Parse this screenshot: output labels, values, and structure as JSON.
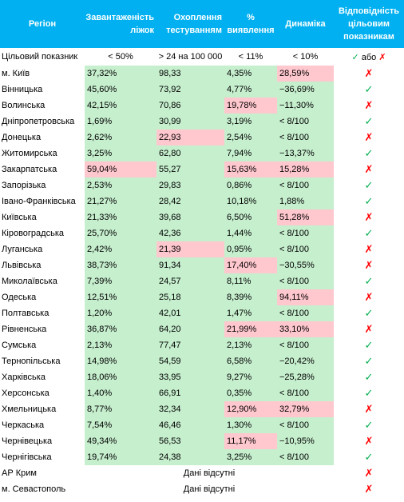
{
  "colors": {
    "header_bg": "#00b0f0",
    "header_text": "#ffffff",
    "good_fill": "#c6efce",
    "bad_fill": "#ffc7ce",
    "check_color": "#00b050",
    "cross_color": "#ff0000"
  },
  "headers": {
    "region": "Регіон",
    "beds": "Завантаженість ліжок",
    "testing": "Охоплення тестуванням",
    "detection": "% виявлення",
    "dynamics": "Динаміка",
    "compliance": "Відповідність цільовим показникам"
  },
  "target_row": {
    "label": "Цільовий показник",
    "beds": "< 50%",
    "testing": "> 24 на 100 000",
    "detection": "< 11%",
    "dynamics": "< 10%",
    "check_mark": "✓",
    "or_word": "або",
    "cross_mark": "✗"
  },
  "marks": {
    "yes": "✓",
    "no": "✗"
  },
  "rows": [
    {
      "region": "м. Київ",
      "beds": "37,32%",
      "testing": "98,33",
      "detection": "4,35%",
      "dynamics": "28,59%",
      "ok": false,
      "flags": [
        "g",
        "g",
        "g",
        "r"
      ]
    },
    {
      "region": "Вінницька",
      "beds": "45,60%",
      "testing": "73,92",
      "detection": "4,77%",
      "dynamics": "−36,69%",
      "ok": true,
      "flags": [
        "g",
        "g",
        "g",
        "g"
      ]
    },
    {
      "region": "Волинська",
      "beds": "42,15%",
      "testing": "70,86",
      "detection": "19,78%",
      "dynamics": "−11,30%",
      "ok": false,
      "flags": [
        "g",
        "g",
        "r",
        "g"
      ]
    },
    {
      "region": "Дніпропетровська",
      "beds": "1,69%",
      "testing": "30,99",
      "detection": "3,19%",
      "dynamics": "< 8/100",
      "ok": true,
      "flags": [
        "g",
        "g",
        "g",
        "g"
      ]
    },
    {
      "region": "Донецька",
      "beds": "2,62%",
      "testing": "22,93",
      "detection": "2,54%",
      "dynamics": "< 8/100",
      "ok": false,
      "flags": [
        "g",
        "r",
        "g",
        "g"
      ]
    },
    {
      "region": "Житомирська",
      "beds": "3,25%",
      "testing": "62,80",
      "detection": "7,94%",
      "dynamics": "−13,37%",
      "ok": true,
      "flags": [
        "g",
        "g",
        "g",
        "g"
      ]
    },
    {
      "region": "Закарпатська",
      "beds": "59,04%",
      "testing": "55,27",
      "detection": "15,63%",
      "dynamics": "15,28%",
      "ok": false,
      "flags": [
        "r",
        "g",
        "r",
        "r"
      ]
    },
    {
      "region": "Запорізька",
      "beds": "2,53%",
      "testing": "29,83",
      "detection": "0,86%",
      "dynamics": "< 8/100",
      "ok": true,
      "flags": [
        "g",
        "g",
        "g",
        "g"
      ]
    },
    {
      "region": "Івано-Франківська",
      "beds": "21,27%",
      "testing": "28,42",
      "detection": "10,18%",
      "dynamics": "1,88%",
      "ok": true,
      "flags": [
        "g",
        "g",
        "g",
        "g"
      ]
    },
    {
      "region": "Київська",
      "beds": "21,33%",
      "testing": "39,68",
      "detection": "6,50%",
      "dynamics": "51,28%",
      "ok": false,
      "flags": [
        "g",
        "g",
        "g",
        "r"
      ]
    },
    {
      "region": "Кіровоградська",
      "beds": "25,70%",
      "testing": "42,36",
      "detection": "1,44%",
      "dynamics": "< 8/100",
      "ok": true,
      "flags": [
        "g",
        "g",
        "g",
        "g"
      ]
    },
    {
      "region": "Луганська",
      "beds": "2,42%",
      "testing": "21,39",
      "detection": "0,95%",
      "dynamics": "< 8/100",
      "ok": false,
      "flags": [
        "g",
        "r",
        "g",
        "g"
      ]
    },
    {
      "region": "Львівська",
      "beds": "38,73%",
      "testing": "91,34",
      "detection": "17,40%",
      "dynamics": "−30,55%",
      "ok": false,
      "flags": [
        "g",
        "g",
        "r",
        "g"
      ]
    },
    {
      "region": "Миколаївська",
      "beds": "7,39%",
      "testing": "24,57",
      "detection": "8,11%",
      "dynamics": "< 8/100",
      "ok": true,
      "flags": [
        "g",
        "g",
        "g",
        "g"
      ]
    },
    {
      "region": "Одеська",
      "beds": "12,51%",
      "testing": "25,18",
      "detection": "8,39%",
      "dynamics": "94,11%",
      "ok": false,
      "flags": [
        "g",
        "g",
        "g",
        "r"
      ]
    },
    {
      "region": "Полтавська",
      "beds": "1,20%",
      "testing": "42,01",
      "detection": "1,47%",
      "dynamics": "< 8/100",
      "ok": true,
      "flags": [
        "g",
        "g",
        "g",
        "g"
      ]
    },
    {
      "region": "Рівненська",
      "beds": "36,87%",
      "testing": "64,20",
      "detection": "21,99%",
      "dynamics": "33,10%",
      "ok": false,
      "flags": [
        "g",
        "g",
        "r",
        "r"
      ]
    },
    {
      "region": "Сумська",
      "beds": "2,13%",
      "testing": "77,47",
      "detection": "2,13%",
      "dynamics": "< 8/100",
      "ok": true,
      "flags": [
        "g",
        "g",
        "g",
        "g"
      ]
    },
    {
      "region": "Тернопільська",
      "beds": "14,98%",
      "testing": "54,59",
      "detection": "6,58%",
      "dynamics": "−20,42%",
      "ok": true,
      "flags": [
        "g",
        "g",
        "g",
        "g"
      ]
    },
    {
      "region": "Харківська",
      "beds": "18,06%",
      "testing": "33,95",
      "detection": "9,27%",
      "dynamics": "−25,28%",
      "ok": true,
      "flags": [
        "g",
        "g",
        "g",
        "g"
      ]
    },
    {
      "region": "Херсонська",
      "beds": "1,40%",
      "testing": "66,91",
      "detection": "0,35%",
      "dynamics": "< 8/100",
      "ok": true,
      "flags": [
        "g",
        "g",
        "g",
        "g"
      ]
    },
    {
      "region": "Хмельницька",
      "beds": "8,77%",
      "testing": "32,34",
      "detection": "12,90%",
      "dynamics": "32,79%",
      "ok": false,
      "flags": [
        "g",
        "g",
        "r",
        "r"
      ]
    },
    {
      "region": "Черкаська",
      "beds": "7,54%",
      "testing": "46,46",
      "detection": "1,30%",
      "dynamics": "< 8/100",
      "ok": true,
      "flags": [
        "g",
        "g",
        "g",
        "g"
      ]
    },
    {
      "region": "Чернівецька",
      "beds": "49,34%",
      "testing": "56,53",
      "detection": "11,17%",
      "dynamics": "−10,95%",
      "ok": false,
      "flags": [
        "g",
        "g",
        "r",
        "g"
      ]
    },
    {
      "region": "Чернігівська",
      "beds": "19,74%",
      "testing": "24,38",
      "detection": "3,25%",
      "dynamics": "< 8/100",
      "ok": true,
      "flags": [
        "g",
        "g",
        "g",
        "g"
      ]
    }
  ],
  "nodata_rows": [
    {
      "region": "АР Крим",
      "text": "Дані відсутні",
      "ok": false
    },
    {
      "region": "м. Севастополь",
      "text": "Дані відсутні",
      "ok": false
    }
  ]
}
